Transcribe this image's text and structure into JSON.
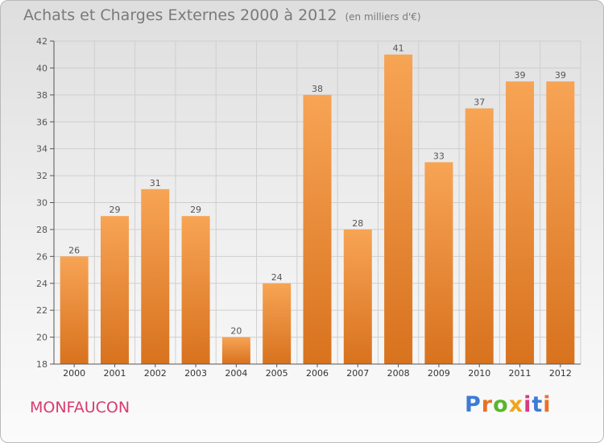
{
  "title": "Achats et Charges Externes 2000 à 2012",
  "unit_note": "(en milliers d'€)",
  "commune": "MONFAUCON",
  "logo_text": "Proxiti",
  "colors": {
    "bar_light": "#f7a455",
    "bar_dark": "#d8721e",
    "commune": "#d83c6e",
    "logo": [
      "#3d7bd6",
      "#e8702a",
      "#5bb52d",
      "#f1a51d",
      "#d93a82",
      "#3d7bd6",
      "#e8702a"
    ]
  },
  "chart_data": {
    "type": "bar",
    "title": "Achats et Charges Externes 2000 à 2012",
    "subtitle": "(en milliers d'€)",
    "xlabel": "",
    "ylabel": "",
    "categories": [
      "2000",
      "2001",
      "2002",
      "2003",
      "2004",
      "2005",
      "2006",
      "2007",
      "2008",
      "2009",
      "2010",
      "2011",
      "2012"
    ],
    "values": [
      26,
      29,
      31,
      29,
      20,
      24,
      38,
      28,
      41,
      33,
      37,
      39,
      39
    ],
    "data_labels": [
      "26",
      "29",
      "31",
      "29",
      "20",
      "24",
      "38",
      "28",
      "41",
      "33",
      "37",
      "39",
      "39"
    ],
    "ylim": [
      18,
      42
    ],
    "yticks": [
      18,
      20,
      22,
      24,
      26,
      28,
      30,
      32,
      34,
      36,
      38,
      40,
      42
    ],
    "ytick_labels": [
      "18",
      "20",
      "22",
      "24",
      "26",
      "28",
      "30",
      "32",
      "34",
      "36",
      "38",
      "40",
      "42"
    ],
    "grid": true,
    "legend": "none"
  }
}
